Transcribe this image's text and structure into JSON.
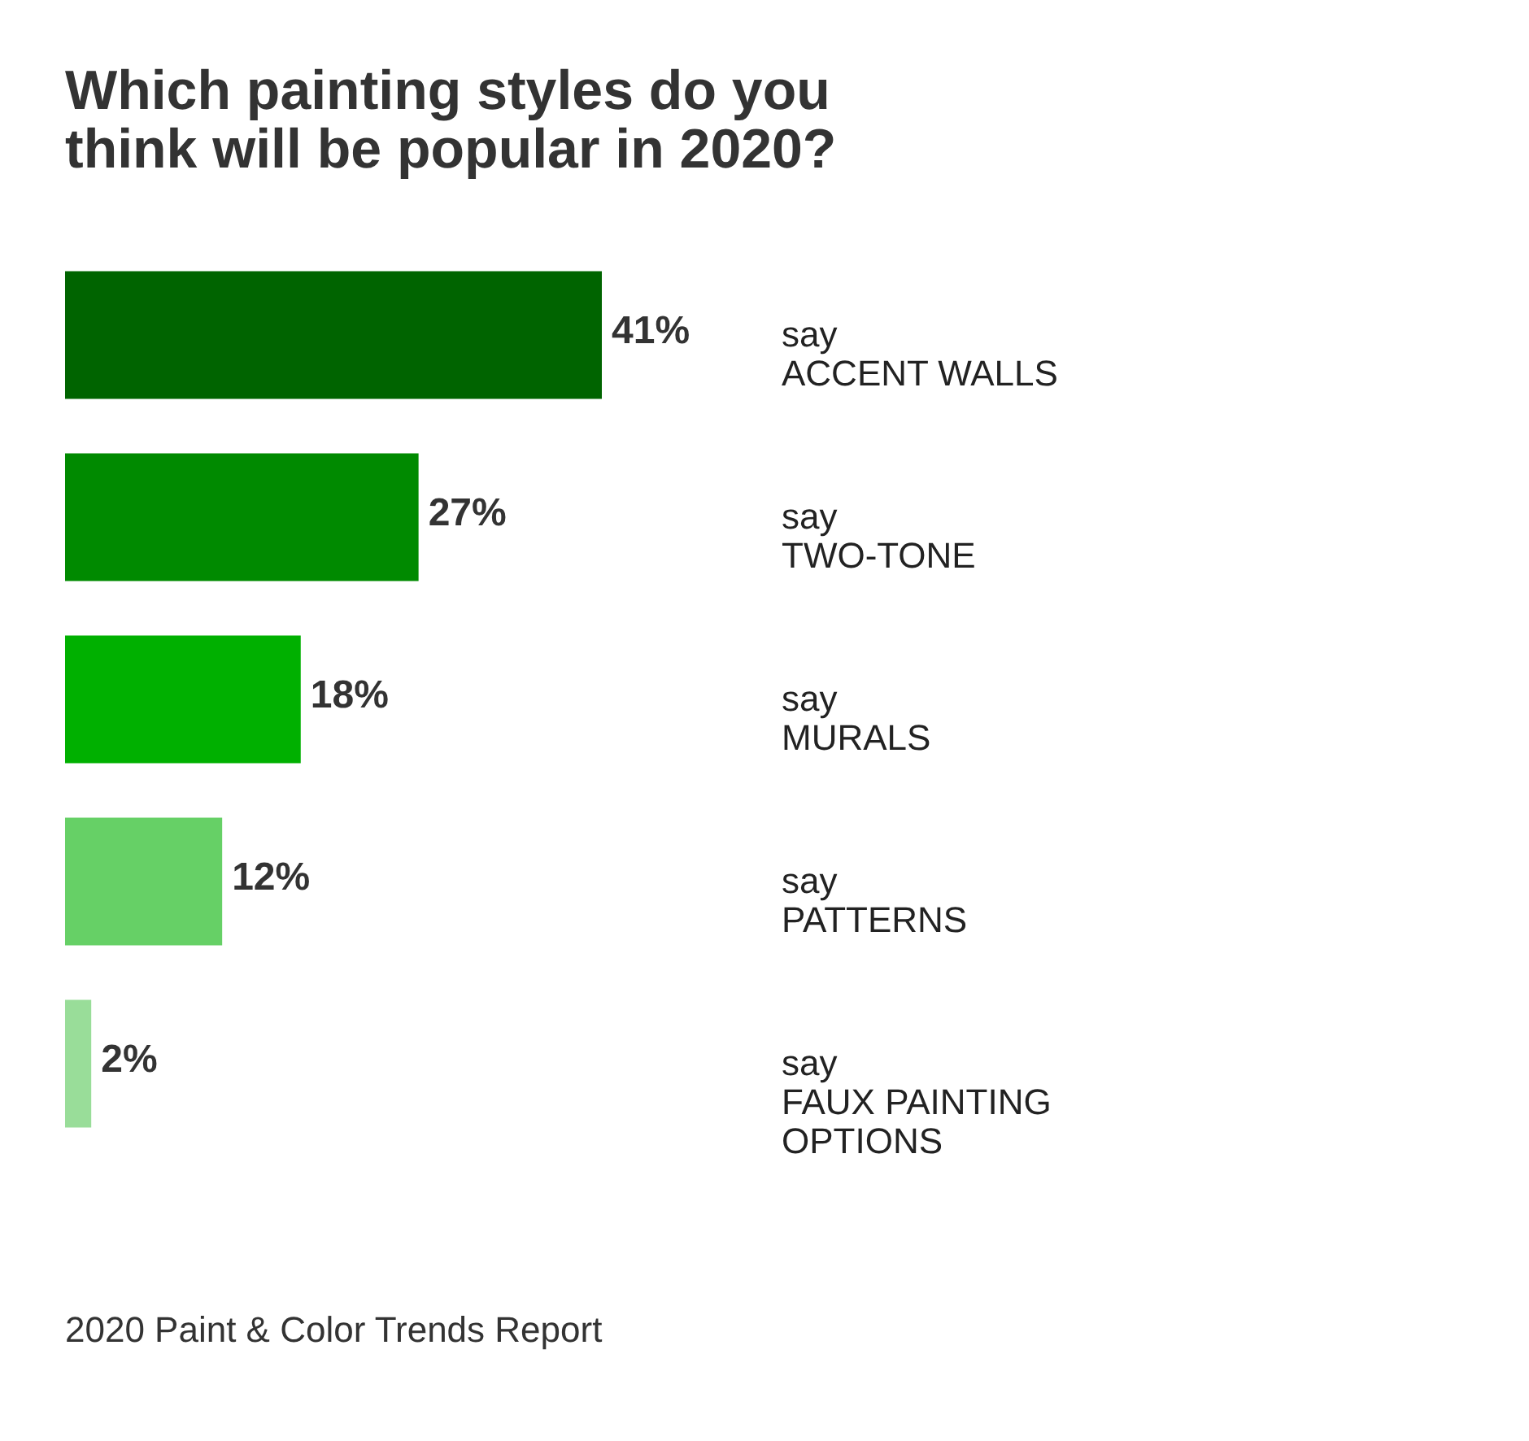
{
  "chart_data": {
    "type": "bar",
    "orientation": "horizontal",
    "title": "Which painting styles do you think will be popular in 2020?",
    "categories": [
      "say\nACCENT WALLS",
      "say\nTWO-TONE",
      "say\nMURALS",
      "say\nPATTERNS",
      "say\nFAUX PAINTING\nOPTIONS"
    ],
    "values": [
      41,
      27,
      18,
      12,
      2
    ],
    "colors": [
      "#006400",
      "#008a00",
      "#00b000",
      "#66d066",
      "#99dd99"
    ],
    "value_labels": [
      "41%",
      "27%",
      "18%",
      "12%",
      "2%"
    ],
    "annotations": [
      "2020 Paint & Color Trends Report"
    ]
  }
}
